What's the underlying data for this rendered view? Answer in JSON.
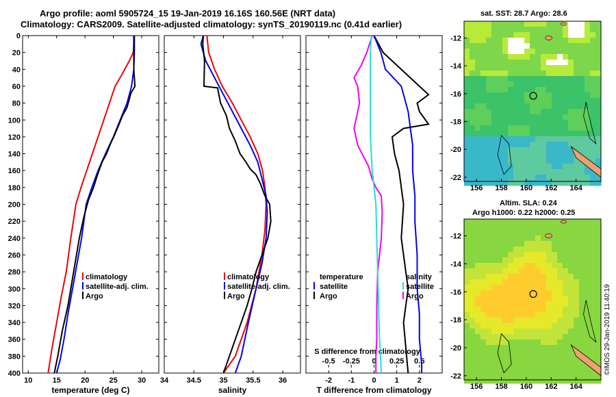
{
  "header": {
    "title_line1": "Argo profile: aoml 5905724_15 19-Jan-2019 16.16S 160.56E (NRT data)",
    "title_line2": "Climatology: CARS2009. Satellite-adjusted climatology: synTS_20190119.nc (0.41d earlier)",
    "map1_title": "sat. SST: 28.7 Argo: 28.6",
    "map2_title1": "Altim. SLA: 0.24",
    "map2_title2": "Argo h1000: 0.22 h2000: 0.25",
    "credit": "©IMOS 29-Jan-2019 11:40:19"
  },
  "colors": {
    "climatology": "#ee0000",
    "satellite": "#0000ee",
    "argo": "#000000",
    "s_diff": "#ee00ee",
    "s_diff_sat": "#22dddd"
  },
  "chart_data": [
    {
      "type": "line",
      "xlabel": "temperature (deg C)",
      "ylabel": "",
      "xlim": [
        9,
        33
      ],
      "ylim": [
        400,
        0
      ],
      "xticks": [
        "10",
        "15",
        "20",
        "25",
        "30"
      ],
      "xtick_values": [
        10,
        15,
        20,
        25,
        30
      ],
      "yticks": [
        "0",
        "20",
        "40",
        "60",
        "80",
        "100",
        "120",
        "140",
        "160",
        "180",
        "200",
        "220",
        "240",
        "260",
        "280",
        "300",
        "320",
        "340",
        "360",
        "380",
        "400"
      ],
      "ytick_values": [
        0,
        20,
        40,
        60,
        80,
        100,
        120,
        140,
        160,
        180,
        200,
        220,
        240,
        260,
        280,
        300,
        320,
        340,
        360,
        380,
        400
      ],
      "legend": [
        "climatology",
        "satellite-adj. clim.",
        "Argo"
      ],
      "series": [
        {
          "name": "climatology",
          "color_key": "climatology",
          "x": [
            28.7,
            28.5,
            27.8,
            26.6,
            25.3,
            24.3,
            23.3,
            22.3,
            21.3,
            20.3,
            19.3,
            18.4,
            17.5,
            16.7,
            15.8,
            15.0,
            14.2,
            13.5
          ],
          "y": [
            0,
            20,
            30,
            45,
            60,
            80,
            100,
            120,
            140,
            160,
            180,
            200,
            240,
            280,
            310,
            340,
            370,
            400
          ]
        },
        {
          "name": "satellite-adj. clim.",
          "color_key": "satellite",
          "x": [
            28.7,
            28.7,
            28.6,
            28.2,
            27.4,
            26.2,
            25.0,
            23.6,
            22.3,
            21.2,
            20.2,
            19.4,
            18.6,
            17.8,
            17.0,
            16.3,
            15.6,
            15.0
          ],
          "y": [
            0,
            20,
            40,
            60,
            80,
            100,
            120,
            140,
            160,
            180,
            200,
            240,
            270,
            300,
            330,
            360,
            385,
            400
          ]
        },
        {
          "name": "Argo",
          "color_key": "argo",
          "x": [
            28.6,
            28.6,
            28.6,
            28.8,
            28.1,
            27.4,
            26.6,
            26.0,
            25.2,
            24.5,
            23.8,
            23.0,
            22.2,
            21.5,
            20.6,
            19.8,
            19.0,
            18.0,
            17.0,
            16.0,
            15.2,
            14.6
          ],
          "y": [
            0,
            20,
            40,
            60,
            68,
            85,
            95,
            105,
            118,
            128,
            140,
            150,
            165,
            180,
            195,
            215,
            240,
            280,
            320,
            350,
            380,
            400
          ]
        }
      ]
    },
    {
      "type": "line",
      "xlabel": "salinity",
      "ylabel": "",
      "xlim": [
        34,
        36.3
      ],
      "ylim": [
        400,
        0
      ],
      "xticks": [
        "34",
        "34.5",
        "35",
        "35.5",
        "36"
      ],
      "xtick_values": [
        34,
        34.5,
        35,
        35.5,
        36
      ],
      "legend": [
        "climatology",
        "satellite-adj. clim.",
        "Argo"
      ],
      "series": [
        {
          "name": "climatology",
          "color_key": "climatology",
          "x": [
            34.72,
            34.75,
            34.85,
            34.98,
            35.15,
            35.3,
            35.45,
            35.58,
            35.66,
            35.7,
            35.72,
            35.7,
            35.65,
            35.55,
            35.4,
            35.2,
            35.0
          ],
          "y": [
            0,
            20,
            40,
            60,
            80,
            100,
            120,
            140,
            160,
            180,
            200,
            230,
            260,
            300,
            340,
            380,
            400
          ]
        },
        {
          "name": "satellite-adj. clim.",
          "color_key": "satellite",
          "x": [
            34.66,
            34.62,
            34.7,
            34.85,
            35.0,
            35.15,
            35.3,
            35.45,
            35.58,
            35.65,
            35.72,
            35.74,
            35.72,
            35.65,
            35.55,
            35.42,
            35.3,
            35.2
          ],
          "y": [
            0,
            10,
            30,
            50,
            70,
            90,
            110,
            130,
            150,
            170,
            190,
            210,
            240,
            270,
            300,
            340,
            380,
            400
          ]
        },
        {
          "name": "Argo",
          "color_key": "argo",
          "x": [
            34.66,
            34.65,
            34.68,
            34.67,
            34.9,
            34.95,
            35.05,
            35.1,
            35.2,
            35.28,
            35.38,
            35.45,
            35.55,
            35.62,
            35.7,
            35.78,
            35.8,
            35.75,
            35.65,
            35.55,
            35.48,
            35.4,
            35.3,
            35.2,
            35.1,
            35.0
          ],
          "y": [
            0,
            10,
            30,
            60,
            62,
            80,
            95,
            110,
            125,
            140,
            150,
            158,
            165,
            175,
            190,
            200,
            220,
            240,
            260,
            280,
            300,
            320,
            340,
            360,
            380,
            400
          ]
        }
      ]
    },
    {
      "type": "line",
      "xlabel": "T difference from climatology",
      "x2label": "S difference from climatology",
      "ylabel": "",
      "xlim": [
        -3,
        3
      ],
      "ylim": [
        400,
        0
      ],
      "xticks": [
        "-2",
        "-1",
        "0",
        "1",
        "2"
      ],
      "xtick_values": [
        -2,
        -1,
        0,
        1,
        2
      ],
      "x2lim": [
        -0.75,
        0.75
      ],
      "x2ticks": [
        "-0.5",
        "-0.25",
        "0",
        "0.25",
        "0.5"
      ],
      "x2tick_values": [
        -0.5,
        -0.25,
        0,
        0.25,
        0.5
      ],
      "legend_left": [
        "temperature",
        "satellite",
        "Argo"
      ],
      "legend_right": [
        "salinity",
        "satellite",
        "Argo"
      ],
      "series": [
        {
          "name": "T Argo - clim",
          "color_key": "argo",
          "axis": "t",
          "x": [
            0,
            0.4,
            0.8,
            1.4,
            2.0,
            2.4,
            1.9,
            2.0,
            2.4,
            1.3,
            0.8,
            0.9,
            1.1,
            1.3,
            1.2,
            1.4,
            1.5,
            1.4,
            1.3,
            1.4,
            1.5
          ],
          "y": [
            0,
            20,
            30,
            45,
            60,
            70,
            80,
            90,
            105,
            110,
            120,
            140,
            160,
            200,
            240,
            280,
            300,
            320,
            340,
            370,
            400
          ]
        },
        {
          "name": "T Argo - satellite",
          "color_key": "satellite",
          "axis": "t",
          "x": [
            0,
            0.3,
            0.5,
            1.2,
            1.5,
            1.6,
            1.7,
            1.7,
            1.8,
            1.8,
            1.9,
            1.9,
            2.0,
            2.0,
            2.1,
            2.1
          ],
          "y": [
            0,
            20,
            40,
            60,
            90,
            110,
            130,
            160,
            190,
            220,
            260,
            300,
            330,
            360,
            390,
            400
          ]
        },
        {
          "name": "S Argo - clim",
          "color_key": "s_diff",
          "axis": "s",
          "x": [
            -0.02,
            -0.08,
            -0.14,
            -0.22,
            -0.18,
            -0.16,
            -0.22,
            -0.18,
            -0.06,
            -0.02,
            0.02,
            0.08,
            0.09,
            0.08,
            0.04,
            0.03,
            0.03,
            0.02,
            0.02
          ],
          "y": [
            0,
            20,
            35,
            50,
            60,
            80,
            110,
            130,
            155,
            170,
            180,
            190,
            210,
            240,
            280,
            320,
            360,
            380,
            400
          ]
        },
        {
          "name": "S Argo - satellite",
          "color_key": "s_diff_sat",
          "axis": "s",
          "x": [
            -0.03,
            -0.04,
            -0.04,
            -0.04,
            -0.04,
            -0.04,
            -0.04,
            -0.03,
            -0.02,
            0.0,
            0.02,
            0.03,
            0.04,
            0.05,
            0.06,
            0.07,
            0.08
          ],
          "y": [
            0,
            20,
            40,
            60,
            80,
            100,
            120,
            140,
            160,
            180,
            200,
            240,
            280,
            320,
            360,
            380,
            400
          ]
        }
      ]
    },
    {
      "type": "heatmap",
      "title": "sat. SST: 28.7 Argo: 28.6",
      "xlim": [
        155,
        166
      ],
      "ylim": [
        -22.3,
        -10.8
      ],
      "xticks": [
        "156",
        "158",
        "160",
        "162",
        "164"
      ],
      "xtick_values": [
        156,
        158,
        160,
        162,
        164
      ],
      "yticks": [
        "-12",
        "-14",
        "-16",
        "-18",
        "-20",
        "-22"
      ],
      "ytick_values": [
        -12,
        -14,
        -16,
        -18,
        -20,
        -22
      ],
      "argo_position": {
        "lon": 160.56,
        "lat": -16.16
      }
    },
    {
      "type": "heatmap",
      "title": "Altim. SLA: 0.24",
      "xlim": [
        155,
        166
      ],
      "ylim": [
        -22.3,
        -10.8
      ],
      "xticks": [
        "156",
        "158",
        "160",
        "162",
        "164"
      ],
      "xtick_values": [
        156,
        158,
        160,
        162,
        164
      ],
      "yticks": [
        "-12",
        "-14",
        "-16",
        "-18",
        "-20",
        "-22"
      ],
      "ytick_values": [
        -12,
        -14,
        -16,
        -18,
        -20,
        -22
      ],
      "argo_position": {
        "lon": 160.56,
        "lat": -16.16
      }
    }
  ]
}
